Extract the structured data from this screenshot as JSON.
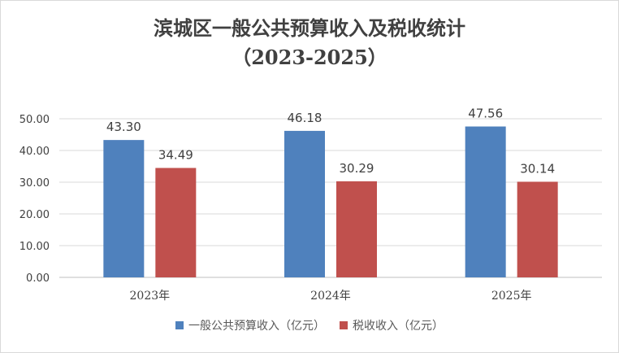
{
  "chart_data": {
    "type": "bar",
    "title": "滨城区一般公共预算收入及税收统计",
    "subtitle": "（2023-2025）",
    "categories": [
      "2023年",
      "2024年",
      "2025年"
    ],
    "series": [
      {
        "name": "一般公共预算收入（亿元）",
        "values": [
          43.3,
          46.18,
          47.56
        ],
        "labels": [
          "43.30",
          "46.18",
          "47.56"
        ],
        "color": "#4f81bd"
      },
      {
        "name": "税收收入（亿元）",
        "values": [
          34.49,
          30.29,
          30.14
        ],
        "labels": [
          "34.49",
          "30.29",
          "30.14"
        ],
        "color": "#c0504d"
      }
    ],
    "ylim": [
      0,
      50
    ],
    "yticks": [
      "0.00",
      "10.00",
      "20.00",
      "30.00",
      "40.00",
      "50.00"
    ],
    "grid": true,
    "legend": "bottom"
  }
}
